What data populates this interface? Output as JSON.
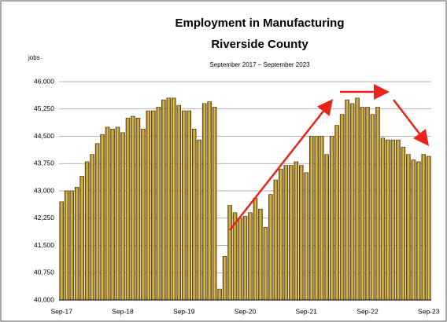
{
  "chart_data": {
    "type": "bar",
    "title_lines": [
      "Employment in Manufacturing",
      "Riverside County"
    ],
    "subtitle": "September 2017 – September 2023",
    "y_label": "jobs",
    "color": "#c9a235",
    "grid": true,
    "categories": [
      "Sep-17",
      null,
      null,
      null,
      null,
      null,
      null,
      null,
      null,
      null,
      null,
      null,
      "Sep-18",
      null,
      null,
      null,
      null,
      null,
      null,
      null,
      null,
      null,
      null,
      null,
      "Sep-19",
      null,
      null,
      null,
      null,
      null,
      null,
      null,
      null,
      null,
      null,
      null,
      "Sep-20",
      null,
      null,
      null,
      null,
      null,
      null,
      null,
      null,
      null,
      null,
      null,
      "Sep-21",
      null,
      null,
      null,
      null,
      null,
      null,
      null,
      null,
      null,
      null,
      null,
      "Sep-22",
      null,
      null,
      null,
      null,
      null,
      null,
      null,
      null,
      null,
      null,
      null,
      "Sep-23"
    ],
    "values": [
      42700,
      43000,
      43000,
      43100,
      43400,
      43800,
      44000,
      44300,
      44550,
      44750,
      44700,
      44750,
      44600,
      45000,
      45050,
      45000,
      44700,
      45200,
      45200,
      45300,
      45500,
      45550,
      45550,
      45350,
      45200,
      45200,
      44700,
      44400,
      45400,
      45450,
      45300,
      40300,
      41200,
      42600,
      42400,
      42250,
      42300,
      42400,
      42800,
      42500,
      42000,
      42900,
      43300,
      43600,
      43700,
      43700,
      43800,
      43700,
      43500,
      44500,
      44500,
      44500,
      44000,
      44500,
      44800,
      45100,
      45500,
      45400,
      45550,
      45300,
      45300,
      45100,
      45300,
      44450,
      44400,
      44400,
      44400,
      44200,
      44000,
      43850,
      43800,
      44000,
      43950
    ],
    "ylim": [
      40000,
      46000
    ],
    "yticks": [
      {
        "value": 40000,
        "label": "40,000"
      },
      {
        "value": 40750,
        "label": "40,750"
      },
      {
        "value": 41500,
        "label": "41,500"
      },
      {
        "value": 42250,
        "label": "42,250"
      },
      {
        "value": 43000,
        "label": "43,000"
      },
      {
        "value": 43750,
        "label": "43,750"
      },
      {
        "value": 44500,
        "label": "44,500"
      },
      {
        "value": 45250,
        "label": "45,250"
      },
      {
        "value": 46000,
        "label": "46,000"
      }
    ]
  }
}
